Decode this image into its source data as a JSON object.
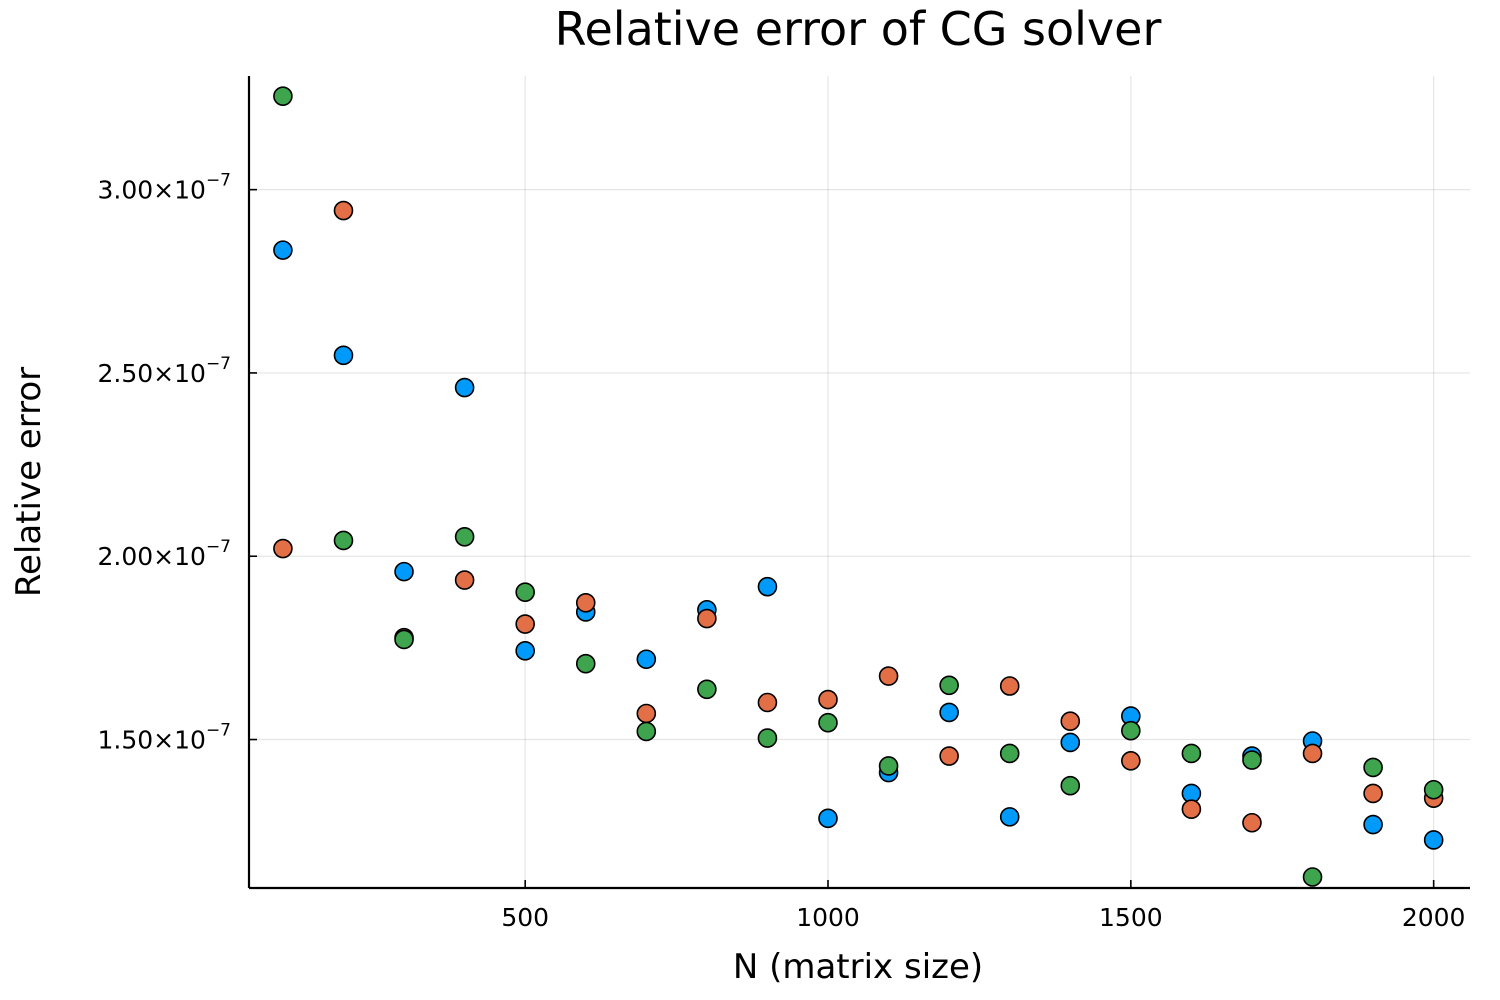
{
  "chart_data": {
    "type": "scatter",
    "title": "Relative error of CG solver",
    "xlabel": "N (matrix size)",
    "ylabel": "Relative error",
    "xlim": [
      44,
      2060
    ],
    "ylim": [
      1.095e-07,
      3.31e-07
    ],
    "x_ticks": [
      {
        "value": 500,
        "label": "500"
      },
      {
        "value": 1000,
        "label": "1000"
      },
      {
        "value": 1500,
        "label": "1500"
      },
      {
        "value": 2000,
        "label": "2000"
      }
    ],
    "y_ticks": [
      {
        "value": 1.5e-07,
        "mantissa": "1.50×10",
        "exponent": "−7"
      },
      {
        "value": 2e-07,
        "mantissa": "2.00×10",
        "exponent": "−7"
      },
      {
        "value": 2.5e-07,
        "mantissa": "2.50×10",
        "exponent": "−7"
      },
      {
        "value": 3e-07,
        "mantissa": "3.00×10",
        "exponent": "−7"
      }
    ],
    "grid": true,
    "legend": false,
    "x": [
      100,
      200,
      300,
      400,
      500,
      600,
      700,
      800,
      900,
      1000,
      1100,
      1200,
      1300,
      1400,
      1500,
      1600,
      1700,
      1800,
      1900,
      2000
    ],
    "series": [
      {
        "color": "#009AFA",
        "values": [
          2.835e-07,
          2.548e-07,
          1.958e-07,
          2.46e-07,
          1.742e-07,
          1.848e-07,
          1.719e-07,
          1.854e-07,
          1.917e-07,
          1.285e-07,
          1.41e-07,
          1.574e-07,
          1.289e-07,
          1.492e-07,
          1.564e-07,
          1.353e-07,
          1.455e-07,
          1.496e-07,
          1.268e-07,
          1.226e-07
        ]
      },
      {
        "color": "#E36F47",
        "values": [
          2.021e-07,
          2.943e-07,
          1.778e-07,
          1.935e-07,
          1.815e-07,
          1.873e-07,
          1.571e-07,
          1.83e-07,
          1.601e-07,
          1.609e-07,
          1.673e-07,
          1.455e-07,
          1.646e-07,
          1.55e-07,
          1.442e-07,
          1.31e-07,
          1.273e-07,
          1.462e-07,
          1.353e-07,
          1.34e-07
        ]
      },
      {
        "color": "#3EA44E",
        "values": [
          3.255e-07,
          2.043e-07,
          1.773e-07,
          2.053e-07,
          1.902e-07,
          1.707e-07,
          1.522e-07,
          1.637e-07,
          1.504e-07,
          1.546e-07,
          1.428e-07,
          1.648e-07,
          1.462e-07,
          1.374e-07,
          1.524e-07,
          1.462e-07,
          1.444e-07,
          1.125e-07,
          1.424e-07,
          1.363e-07
        ]
      }
    ]
  }
}
